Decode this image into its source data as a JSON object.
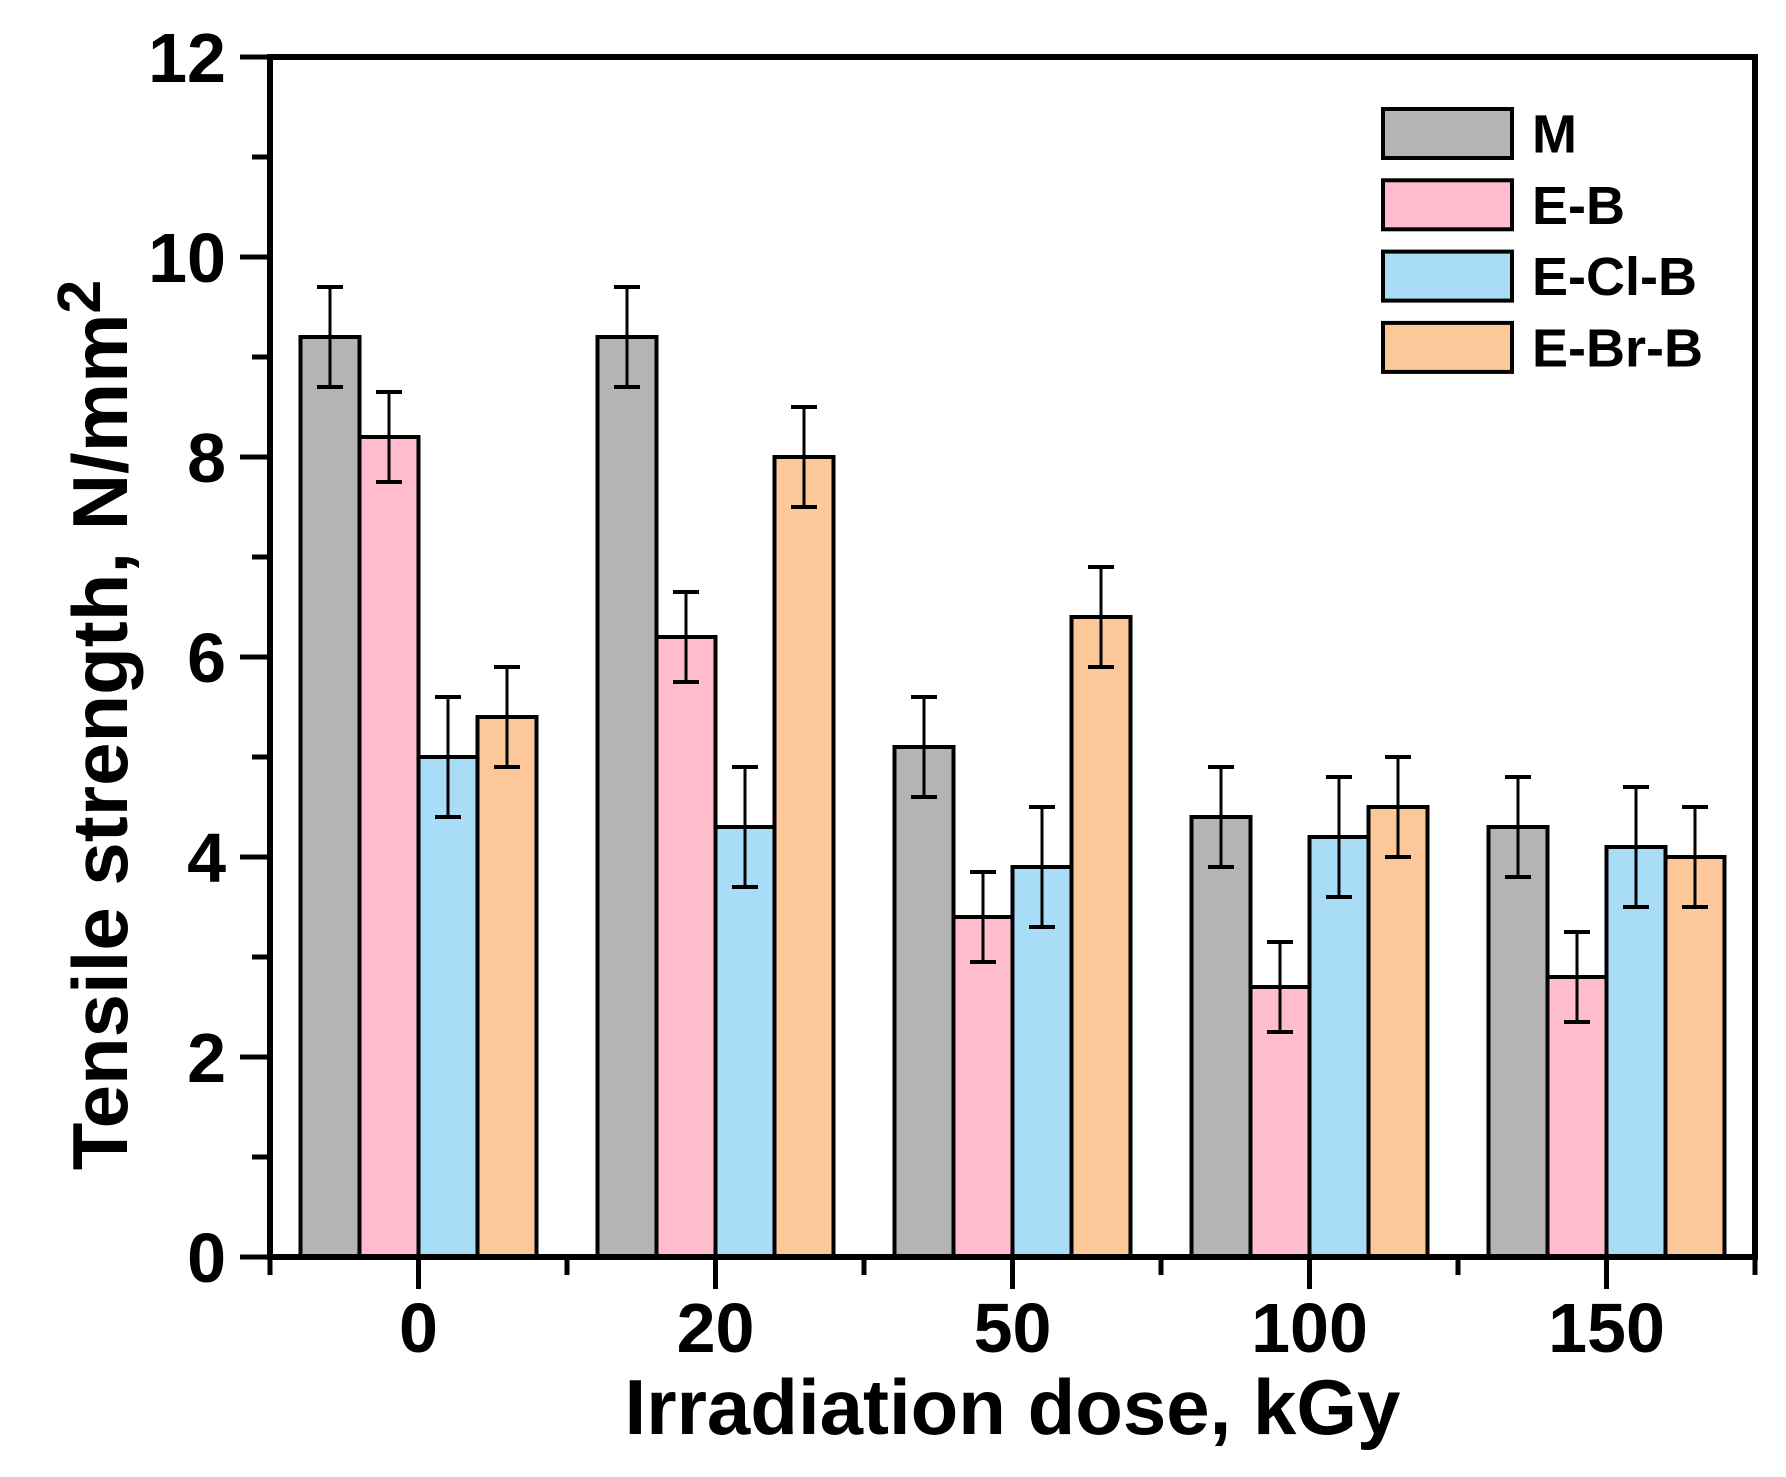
{
  "chart_data": {
    "type": "bar",
    "title": "",
    "xlabel": "Irradiation dose, kGy",
    "ylabel": "Tensile strength, N/mm",
    "ylabel_superscript": "2",
    "categories": [
      "0",
      "20",
      "50",
      "100",
      "150"
    ],
    "series": [
      {
        "name": "M",
        "color": "#b4b4b4",
        "values": [
          9.2,
          9.2,
          5.1,
          4.4,
          4.3
        ],
        "errors": [
          0.5,
          0.5,
          0.5,
          0.5,
          0.5
        ]
      },
      {
        "name": "E-B",
        "color": "#ffbccd",
        "values": [
          8.2,
          6.2,
          3.4,
          2.7,
          2.8
        ],
        "errors": [
          0.45,
          0.45,
          0.45,
          0.45,
          0.45
        ]
      },
      {
        "name": "E-Cl-B",
        "color": "#a8dcf7",
        "values": [
          5.0,
          4.3,
          3.9,
          4.2,
          4.1
        ],
        "errors": [
          0.6,
          0.6,
          0.6,
          0.6,
          0.6
        ]
      },
      {
        "name": "E-Br-B",
        "color": "#fcc89a",
        "values": [
          5.4,
          8.0,
          6.4,
          4.5,
          4.0
        ],
        "errors": [
          0.5,
          0.5,
          0.5,
          0.5,
          0.5
        ]
      }
    ],
    "ylim": [
      0,
      12
    ],
    "yticks": [
      0,
      2,
      4,
      6,
      8,
      10,
      12
    ],
    "yminorticks": [
      1,
      3,
      5,
      7,
      9,
      11
    ],
    "grid": false,
    "legend_position": "top-right",
    "error_bars": true,
    "axis_color": "#000000",
    "background": "#ffffff"
  }
}
